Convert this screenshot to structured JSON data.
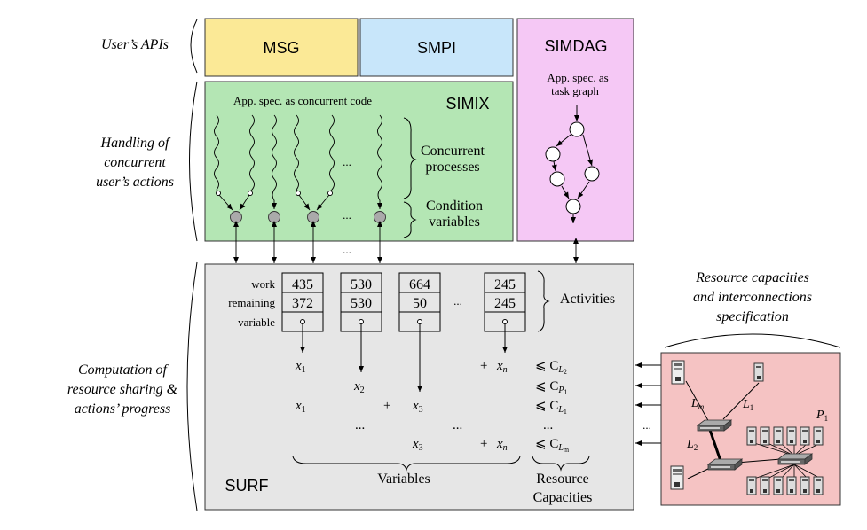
{
  "layers": {
    "apis": "User’s APIs",
    "handling": [
      "Handling of",
      "concurrent",
      "user’s actions"
    ],
    "computation": [
      "Computation of",
      "resource sharing &",
      "actions’ progress"
    ]
  },
  "apis": {
    "msg": "MSG",
    "smpi": "SMPI",
    "simdag": "SIMDAG"
  },
  "simdag": {
    "spec": [
      "App. spec. as",
      "task graph"
    ]
  },
  "simix": {
    "title": "SIMIX",
    "spec": "App. spec. as concurrent code",
    "processes": [
      "Concurrent",
      "processes"
    ],
    "conditions": [
      "Condition",
      "variables"
    ],
    "ellipsis": "..."
  },
  "surf": {
    "title": "SURF",
    "row_labels": [
      "work",
      "remaining",
      "variable"
    ],
    "activities": [
      {
        "work": "435",
        "remaining": "372"
      },
      {
        "work": "530",
        "remaining": "530"
      },
      {
        "work": "664",
        "remaining": "50"
      },
      {
        "work": "245",
        "remaining": "245"
      }
    ],
    "activities_label": "Activities",
    "ellipsis": "...",
    "variables_label": "Variables",
    "capacities_label": [
      "Resource",
      "Capacities"
    ],
    "equations": {
      "x1": "x",
      "sub1": "1",
      "x2": "x",
      "sub2": "2",
      "x3": "x",
      "sub3": "3",
      "xn": "x",
      "subn": "n",
      "plus": "+",
      "leq": "⩽ C",
      "c1": "L",
      "c1s": "2",
      "c2": "P",
      "c2s": "1",
      "c3": "L",
      "c3s": "1",
      "c4": "L",
      "c4s": "m",
      "dots": "..."
    }
  },
  "resources": {
    "title": [
      "Resource capacities",
      "and interconnections",
      "specification"
    ],
    "lm": "L",
    "lm_sub": "m",
    "l1": "L",
    "l1_sub": "1",
    "l2": "L",
    "l2_sub": "2",
    "p1": "P",
    "p1_sub": "1",
    "ellipsis": "..."
  },
  "colors": {
    "msg": "#fbe996",
    "smpi": "#c8e6fa",
    "simdag": "#f5c8f5",
    "simix": "#b4e6b4",
    "surf": "#e6e6e6",
    "resources": "#f5c3c3"
  }
}
